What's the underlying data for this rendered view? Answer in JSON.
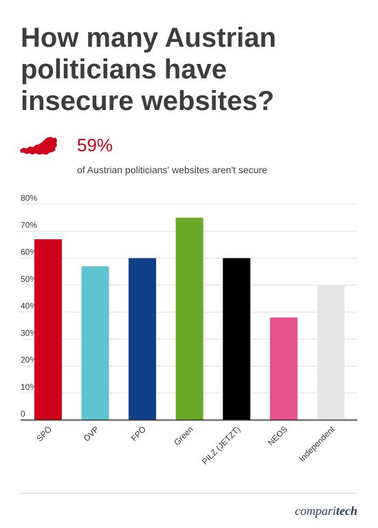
{
  "title": {
    "line1": "How many Austrian",
    "line2": "politicians have",
    "line3": "insecure websites?"
  },
  "stat": {
    "value": "59%",
    "caption": "of Austrian politicians' websites aren't secure",
    "icon": "austria-map-icon",
    "color": "#d0021b"
  },
  "chart_data": {
    "type": "bar",
    "categories": [
      "SPÖ",
      "ÖVP",
      "FPÖ",
      "Green",
      "PILZ (JETZT)",
      "NEOS",
      "Independent"
    ],
    "values": [
      67,
      57,
      60,
      75,
      60,
      38,
      50
    ],
    "colors": [
      "#d0021b",
      "#5fc3d0",
      "#11408a",
      "#69a824",
      "#000000",
      "#e8508f",
      "#e6e6e6"
    ],
    "title": "",
    "xlabel": "",
    "ylabel": "",
    "ylim": [
      0,
      80
    ],
    "yticks": [
      0,
      10,
      20,
      30,
      40,
      50,
      60,
      70,
      80
    ],
    "ytick_labels": [
      "0",
      "10%",
      "20%",
      "30%",
      "40%",
      "50%",
      "60%",
      "70%",
      "80%"
    ],
    "grid": true
  },
  "footer": {
    "brand_part1": "compari",
    "brand_part2": "tech"
  }
}
